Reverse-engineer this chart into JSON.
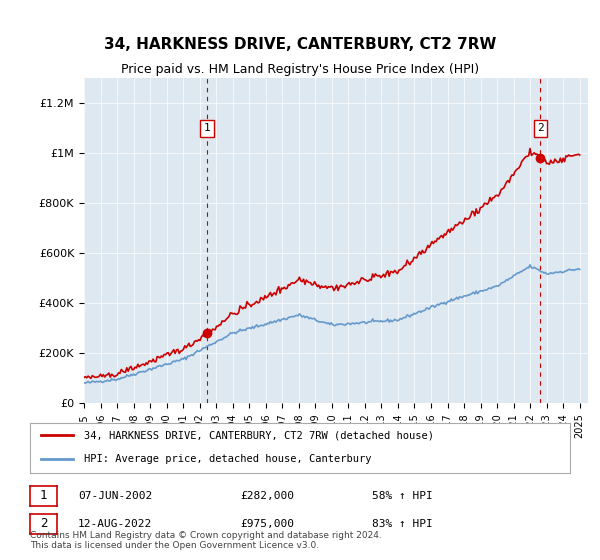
{
  "title": "34, HARKNESS DRIVE, CANTERBURY, CT2 7RW",
  "subtitle": "Price paid vs. HM Land Registry's House Price Index (HPI)",
  "bg_color": "#dde8f0",
  "hpi_color": "#6699cc",
  "price_color": "#cc0000",
  "vline_color": "#cc0000",
  "annotation1": {
    "date_str": "07-JUN-2002",
    "price": 282000,
    "hpi_pct": "58% ↑ HPI",
    "label": "1",
    "x_year": 2002.44
  },
  "annotation2": {
    "date_str": "12-AUG-2022",
    "price": 975000,
    "hpi_pct": "83% ↑ HPI",
    "label": "2",
    "x_year": 2022.62
  },
  "legend1": "34, HARKNESS DRIVE, CANTERBURY, CT2 7RW (detached house)",
  "legend2": "HPI: Average price, detached house, Canterbury",
  "footer": "Contains HM Land Registry data © Crown copyright and database right 2024.\nThis data is licensed under the Open Government Licence v3.0.",
  "ylim": [
    0,
    1300000
  ],
  "xlim_start": 1995,
  "xlim_end": 2025.5,
  "yticks": [
    0,
    200000,
    400000,
    600000,
    800000,
    1000000,
    1200000
  ],
  "ytick_labels": [
    "£0",
    "£200K",
    "£400K",
    "£600K",
    "£800K",
    "£1M",
    "£1.2M"
  ]
}
